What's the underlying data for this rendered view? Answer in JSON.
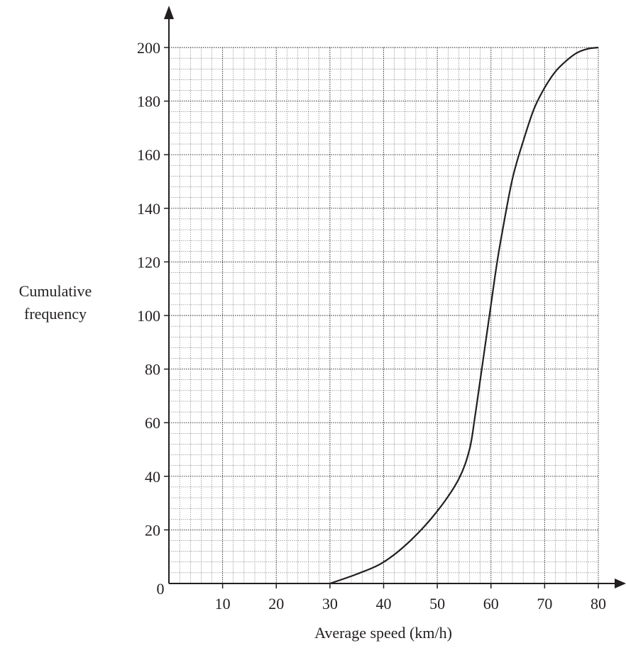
{
  "chart_data": {
    "type": "line",
    "title": "",
    "xlabel": "Average speed (km/h)",
    "ylabel_lines": [
      "Cumulative",
      "frequency"
    ],
    "xlim": [
      0,
      80
    ],
    "ylim": [
      0,
      200
    ],
    "grid": true,
    "origin_label": "0",
    "x_ticks": [
      "10",
      "20",
      "30",
      "40",
      "50",
      "60",
      "70",
      "80"
    ],
    "y_ticks": [
      "20",
      "40",
      "60",
      "80",
      "100",
      "120",
      "140",
      "160",
      "180",
      "200"
    ],
    "series": [
      {
        "x": [
          30,
          35,
          40,
          45,
          50,
          54,
          56,
          57,
          58,
          59,
          60,
          61,
          62,
          64,
          66,
          68,
          70,
          72,
          74,
          76,
          78,
          80
        ],
        "y": [
          0,
          3.5,
          8,
          16,
          27,
          39,
          50,
          62,
          76,
          90,
          104,
          118,
          130,
          151,
          165,
          177,
          185,
          191,
          195,
          198,
          199.5,
          200
        ]
      }
    ],
    "color": "#231f20"
  }
}
